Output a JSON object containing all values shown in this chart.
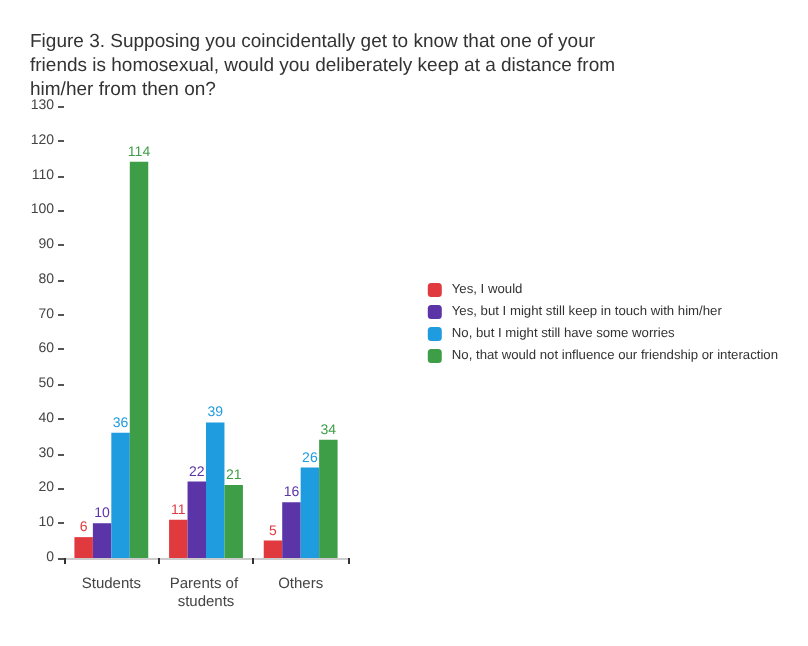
{
  "chart_data": {
    "type": "bar",
    "title": "Figure 3. Supposing you coincidentally get to know that one of your friends is homosexual, would you deliberately keep at a distance from him/her from then on?",
    "categories": [
      "Students",
      "Parents of students",
      "Others"
    ],
    "series": [
      {
        "name": "Yes, I would",
        "color": "#e03a3e",
        "values": [
          6,
          11,
          5
        ]
      },
      {
        "name": "Yes, but I might still keep in touch with him/her",
        "color": "#5b34a8",
        "values": [
          10,
          22,
          16
        ]
      },
      {
        "name": "No, but I might still have some worries",
        "color": "#1f9be0",
        "values": [
          36,
          39,
          26
        ]
      },
      {
        "name": "No, that would not influence our friendship or interaction",
        "color": "#3e9e47",
        "values": [
          114,
          21,
          34
        ]
      }
    ],
    "ylim": [
      0,
      130
    ],
    "yticks": [
      0,
      10,
      20,
      30,
      40,
      50,
      60,
      70,
      80,
      90,
      100,
      110,
      120,
      130
    ],
    "data_labels": true,
    "grid": false,
    "legend": "right"
  }
}
